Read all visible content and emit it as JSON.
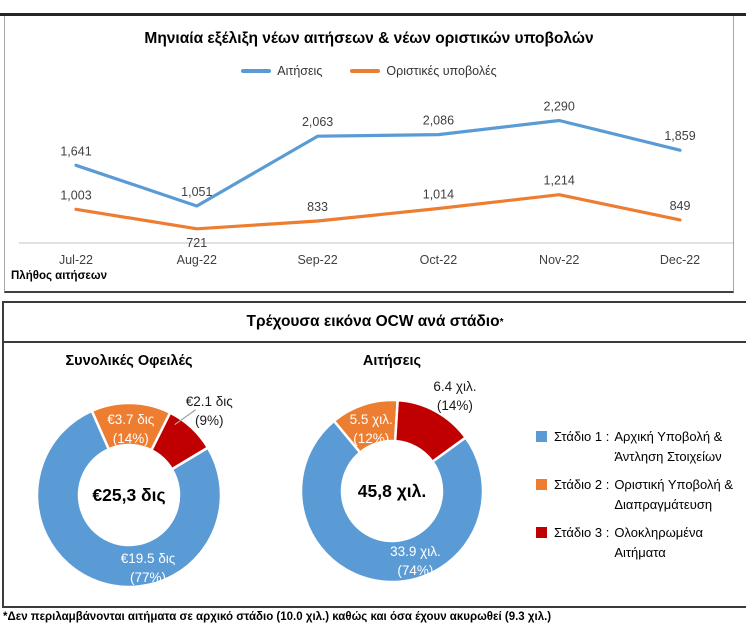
{
  "panel1": {
    "title": "Μηνιαία εξέλιξη νέων αιτήσεων & νέων οριστικών υποβολών",
    "axis_note": "Πλήθος αιτήσεων"
  },
  "panel2": {
    "title": "Τρέχουσα εικόνα OCW ανά στάδιο",
    "title_superscript": "*",
    "col_titles": [
      "Συνολικές Οφειλές",
      "Αιτήσεις"
    ],
    "legend": [
      {
        "stage": "Στάδιο 1 :",
        "lines": [
          "Αρχική Υποβολή &",
          "Άντληση Στοιχείων"
        ],
        "color": "#5B9BD5"
      },
      {
        "stage": "Στάδιο 2 :",
        "lines": [
          "Οριστική Υποβολή &",
          "Διαπραγμάτευση"
        ],
        "color": "#ED7D31"
      },
      {
        "stage": "Στάδιο 3 :",
        "lines": [
          "Ολοκληρωμένα",
          "Αιτήματα"
        ],
        "color": "#C00000"
      }
    ],
    "footnote": "*Δεν περιλαμβάνονται αιτήματα σε αρχικό στάδιο (10.0 χιλ.) καθώς και όσα έχουν ακυρωθεί (9.3 χιλ.)"
  },
  "colors": {
    "stage1": "#5B9BD5",
    "stage2": "#ED7D31",
    "stage3": "#C00000",
    "axis": "#D9D9D9",
    "label_text": "#404040"
  },
  "chart_data": [
    {
      "type": "line",
      "title": "Μηνιαία εξέλιξη νέων αιτήσεων & νέων οριστικών υποβολών",
      "categories": [
        "Jul-22",
        "Aug-22",
        "Sep-22",
        "Oct-22",
        "Nov-22",
        "Dec-22"
      ],
      "series": [
        {
          "name": "Αιτήσεις",
          "color": "#5B9BD5",
          "values": [
            1641,
            1051,
            2063,
            2086,
            2290,
            1859
          ],
          "labels": [
            "1,641",
            "1,051",
            "2,063",
            "2,086",
            "2,290",
            "1,859"
          ]
        },
        {
          "name": "Οριστικές υποβολές",
          "color": "#ED7D31",
          "values": [
            1003,
            721,
            833,
            1014,
            1214,
            849
          ],
          "labels": [
            "1,003",
            "721",
            "833",
            "1,014",
            "1,214",
            "849"
          ]
        }
      ],
      "ylabel": "Πλήθος αιτήσεων",
      "ylim": [
        500,
        2500
      ],
      "grid": false,
      "legend_position": "top"
    },
    {
      "type": "pie",
      "subtype": "donut",
      "title": "Τρέχουσα εικόνα OCW ανά στάδιο*",
      "donuts": [
        {
          "title": "Συνολικές Οφειλές",
          "center_label": "€25,3 δις",
          "slices": [
            {
              "name": "Στάδιο 1 : Αρχική Υποβολή & Άντληση Στοιχείων",
              "value_label": "€19.5 δις",
              "pct_label": "(77%)",
              "pct": 77,
              "color": "#5B9BD5"
            },
            {
              "name": "Στάδιο 2 : Οριστική Υποβολή & Διαπραγμάτευση",
              "value_label": "€3.7 δις",
              "pct_label": "(14%)",
              "pct": 14,
              "color": "#ED7D31"
            },
            {
              "name": "Στάδιο 3 : Ολοκληρωμένα Αιτήματα",
              "value_label": "€2.1 δις",
              "pct_label": "(9%)",
              "pct": 9,
              "color": "#C00000"
            }
          ]
        },
        {
          "title": "Αιτήσεις",
          "center_label": "45,8 χιλ.",
          "slices": [
            {
              "name": "Στάδιο 1 : Αρχική Υποβολή & Άντληση Στοιχείων",
              "value_label": "33.9 χιλ.",
              "pct_label": "(74%)",
              "pct": 74,
              "color": "#5B9BD5"
            },
            {
              "name": "Στάδιο 2 : Οριστική Υποβολή & Διαπραγμάτευση",
              "value_label": "5.5 χιλ.",
              "pct_label": "(12%)",
              "pct": 12,
              "color": "#ED7D31"
            },
            {
              "name": "Στάδιο 3 : Ολοκληρωμένα Αιτήματα",
              "value_label": "6.4 χιλ.",
              "pct_label": "(14%)",
              "pct": 14,
              "color": "#C00000"
            }
          ]
        }
      ]
    }
  ]
}
